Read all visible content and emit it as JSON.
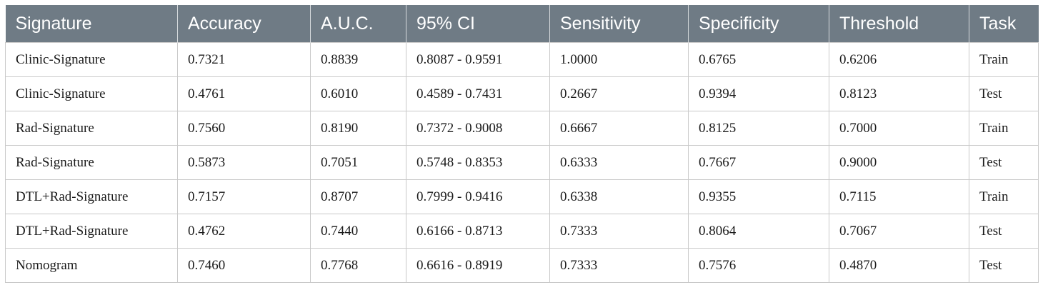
{
  "table": {
    "headers": [
      "Signature",
      "Accuracy",
      "A.U.C.",
      "95% CI",
      "Sensitivity",
      "Specificity",
      "Threshold",
      "Task"
    ],
    "rows": [
      [
        "Clinic-Signature",
        "0.7321",
        "0.8839",
        "0.8087 - 0.9591",
        "1.0000",
        "0.6765",
        "0.6206",
        "Train"
      ],
      [
        "Clinic-Signature",
        "0.4761",
        "0.6010",
        "0.4589 - 0.7431",
        "0.2667",
        "0.9394",
        "0.8123",
        "Test"
      ],
      [
        "Rad-Signature",
        "0.7560",
        "0.8190",
        "0.7372 - 0.9008",
        "0.6667",
        "0.8125",
        "0.7000",
        "Train"
      ],
      [
        "Rad-Signature",
        "0.5873",
        "0.7051",
        "0.5748 - 0.8353",
        "0.6333",
        "0.7667",
        "0.9000",
        "Test"
      ],
      [
        "DTL+Rad-Signature",
        "0.7157",
        "0.8707",
        "0.7999 - 0.9416",
        "0.6338",
        "0.9355",
        "0.7115",
        "Train"
      ],
      [
        "DTL+Rad-Signature",
        "0.4762",
        "0.7440",
        "0.6166 - 0.8713",
        "0.7333",
        "0.8064",
        "0.7067",
        "Test"
      ],
      [
        "Nomogram",
        "0.7460",
        "0.7768",
        "0.6616 - 0.8919",
        "0.7333",
        "0.7576",
        "0.4870",
        "Test"
      ]
    ]
  },
  "colors": {
    "header_bg": "#6f7b85",
    "header_text": "#ffffff",
    "grid": "#c9c9c9"
  }
}
